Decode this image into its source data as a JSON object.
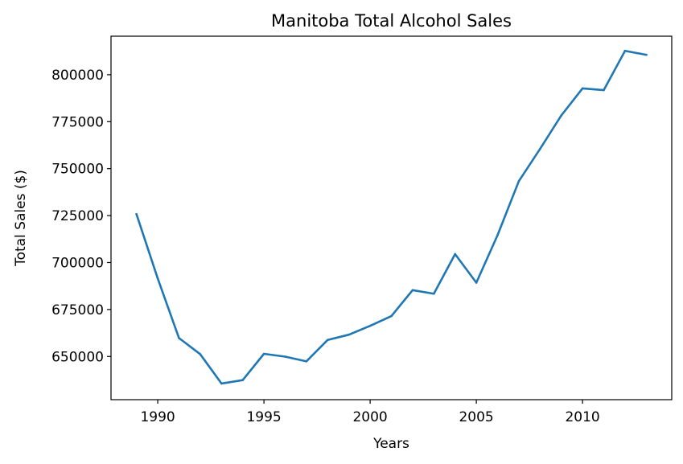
{
  "chart_data": {
    "type": "line",
    "title": "Manitoba Total Alcohol Sales",
    "xlabel": "Years",
    "ylabel": "Total Sales ($)",
    "xlim": [
      1987.8,
      2014.2
    ],
    "ylim": [
      627000,
      820500
    ],
    "xticks": [
      1990,
      1995,
      2000,
      2005,
      2010
    ],
    "yticks": [
      650000,
      675000,
      700000,
      725000,
      750000,
      775000,
      800000
    ],
    "grid": false,
    "series": [
      {
        "name": "",
        "color": "#1f77b4",
        "x": [
          1989,
          1990,
          1991,
          1992,
          1993,
          1994,
          1995,
          1996,
          1997,
          1998,
          1999,
          2000,
          2001,
          2002,
          2003,
          2004,
          2005,
          2006,
          2007,
          2008,
          2009,
          2010,
          2011,
          2012,
          2013
        ],
        "y": [
          725700,
          691500,
          659800,
          651200,
          635600,
          637400,
          651400,
          649900,
          647400,
          658800,
          661600,
          666300,
          671500,
          685300,
          683400,
          704500,
          689300,
          714600,
          743300,
          760500,
          778300,
          792700,
          791800,
          812700,
          810600
        ]
      }
    ]
  }
}
